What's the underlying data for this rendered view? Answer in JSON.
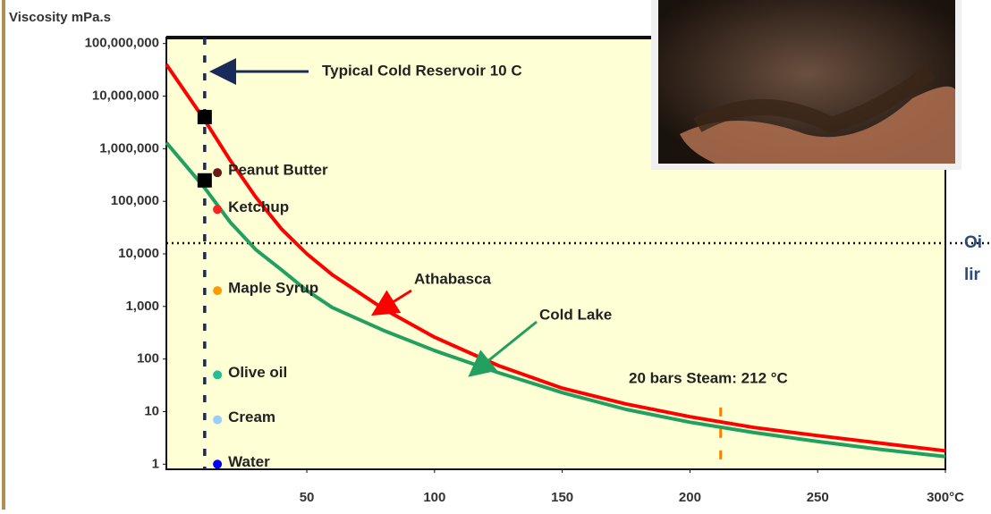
{
  "chart_data": {
    "type": "line",
    "y_label": "Viscosity mPa.s",
    "log_y": true,
    "x": [
      -5,
      10,
      20,
      30,
      40,
      50,
      60,
      80,
      100,
      125,
      150,
      175,
      200,
      225,
      250,
      275,
      300
    ],
    "series": [
      {
        "name": "Athabasca",
        "color": "#ff0000",
        "values": [
          40000000,
          3500000,
          600000,
          120000,
          30000,
          10000,
          4000,
          900,
          260,
          75,
          28,
          14,
          8,
          5,
          3.5,
          2.5,
          1.8
        ]
      },
      {
        "name": "Cold Lake",
        "color": "#22a060",
        "values": [
          1300000,
          180000,
          40000,
          12000,
          5000,
          2000,
          950,
          350,
          145,
          55,
          23,
          11,
          6.3,
          4,
          2.7,
          1.9,
          1.4
        ]
      }
    ],
    "markers": [
      {
        "x": 10,
        "value": 4000000
      },
      {
        "x": 10,
        "value": 250000
      }
    ],
    "references": [
      {
        "name": "Peanut Butter",
        "x": 15,
        "value": 350000,
        "color": "#6b1a1a"
      },
      {
        "name": "Ketchup",
        "x": 15,
        "value": 70000,
        "color": "#ff2020"
      },
      {
        "name": "Maple Syrup",
        "x": 15,
        "value": 2000,
        "color": "#ff9900"
      },
      {
        "name": "Olive oil",
        "x": 15,
        "value": 50,
        "color": "#20c090"
      },
      {
        "name": "Cream",
        "x": 15,
        "value": 7,
        "color": "#99ccff"
      },
      {
        "name": "Water",
        "x": 15,
        "value": 1,
        "color": "#0000ff"
      }
    ],
    "cold_reservoir": {
      "label": "Typical Cold Reservoir 10 C",
      "value": 10
    },
    "steam": {
      "label": "20 bars Steam: 212 °C",
      "value": 212
    },
    "oil_line": {
      "labels": [
        "Oi",
        "lir"
      ],
      "value": 16000
    },
    "xlim": [
      -5,
      300
    ],
    "xticks": [
      50,
      100,
      150,
      200,
      250,
      {
        "value": 300,
        "label": "300°C"
      }
    ],
    "ylim": [
      0.8,
      130000000
    ],
    "yticks": [
      1,
      10,
      100,
      {
        "value": 1000,
        "label": "1,000"
      },
      {
        "value": 10000,
        "label": "10,000"
      },
      {
        "value": 100000,
        "label": "100,000"
      },
      {
        "value": 1000000,
        "label": "1,000,000"
      },
      {
        "value": 10000000,
        "label": "10,000,000"
      },
      {
        "value": 100000000,
        "label": "100,000,000"
      }
    ]
  }
}
